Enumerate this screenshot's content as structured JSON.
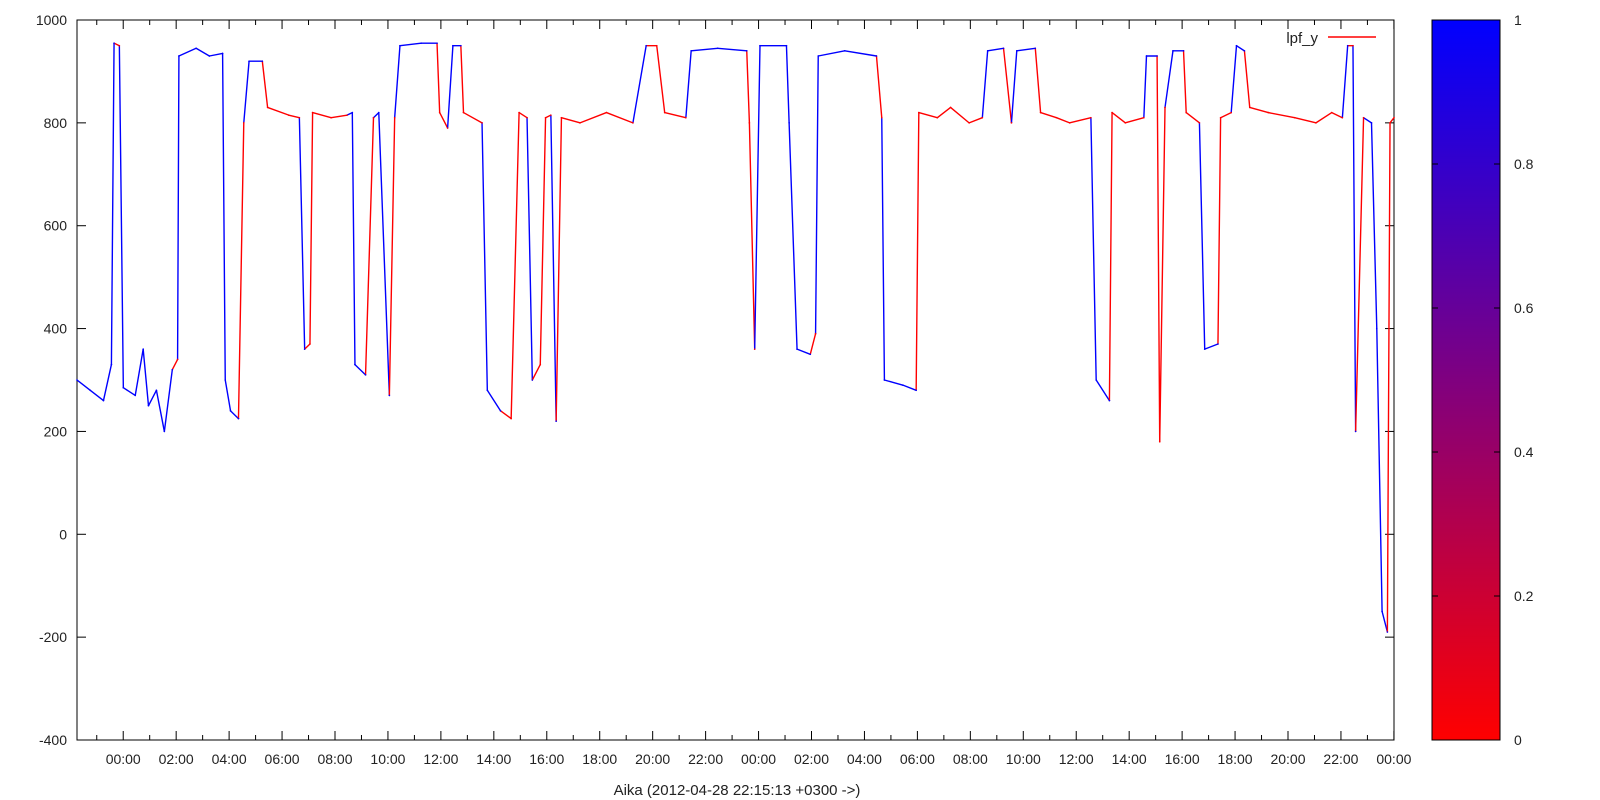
{
  "chart_data": {
    "type": "line",
    "title": "",
    "xlabel": "Aika (2012-04-28 22:15:13 +0300 ->)",
    "ylabel": "",
    "ylim": [
      -400,
      1000
    ],
    "yticks": [
      "-400",
      "-200",
      "0",
      "200",
      "400",
      "600",
      "800",
      "1000"
    ],
    "x_unit": "hours since 2012-04-28 22:15:13",
    "xlim": [
      0,
      49.75
    ],
    "xticks": [
      {
        "label": "00:00",
        "at": 1.746
      },
      {
        "label": "02:00",
        "at": 3.746
      },
      {
        "label": "04:00",
        "at": 5.746
      },
      {
        "label": "06:00",
        "at": 7.746
      },
      {
        "label": "08:00",
        "at": 9.746
      },
      {
        "label": "10:00",
        "at": 11.746
      },
      {
        "label": "12:00",
        "at": 13.746
      },
      {
        "label": "14:00",
        "at": 15.746
      },
      {
        "label": "16:00",
        "at": 17.746
      },
      {
        "label": "18:00",
        "at": 19.746
      },
      {
        "label": "20:00",
        "at": 21.746
      },
      {
        "label": "22:00",
        "at": 23.746
      },
      {
        "label": "00:00",
        "at": 25.746
      },
      {
        "label": "02:00",
        "at": 27.746
      },
      {
        "label": "04:00",
        "at": 29.746
      },
      {
        "label": "06:00",
        "at": 31.746
      },
      {
        "label": "08:00",
        "at": 33.746
      },
      {
        "label": "10:00",
        "at": 35.746
      },
      {
        "label": "12:00",
        "at": 37.746
      },
      {
        "label": "14:00",
        "at": 39.746
      },
      {
        "label": "16:00",
        "at": 41.746
      },
      {
        "label": "18:00",
        "at": 43.746
      },
      {
        "label": "20:00",
        "at": 45.746
      },
      {
        "label": "22:00",
        "at": 47.746
      },
      {
        "label": "00:00",
        "at": 49.746
      }
    ],
    "legend": {
      "position": "top-right"
    },
    "series": [
      {
        "name": "lpf_y",
        "color_mode": "palette",
        "points": [
          [
            0,
            300,
            1
          ],
          [
            0.5,
            280,
            1
          ],
          [
            1.0,
            260,
            1
          ],
          [
            1.3,
            330,
            1
          ],
          [
            1.4,
            955,
            1
          ],
          [
            1.6,
            950,
            0
          ],
          [
            1.75,
            285,
            1
          ],
          [
            2.2,
            270,
            1
          ],
          [
            2.5,
            360,
            1
          ],
          [
            2.7,
            250,
            1
          ],
          [
            3.0,
            280,
            1
          ],
          [
            3.3,
            200,
            1
          ],
          [
            3.6,
            320,
            1
          ],
          [
            3.8,
            340,
            0
          ],
          [
            3.85,
            930,
            1
          ],
          [
            4.5,
            945,
            1
          ],
          [
            5.0,
            930,
            1
          ],
          [
            5.5,
            935,
            1
          ],
          [
            5.6,
            300,
            1
          ],
          [
            5.8,
            240,
            1
          ],
          [
            6.1,
            225,
            1
          ],
          [
            6.3,
            800,
            0
          ],
          [
            6.5,
            920,
            1
          ],
          [
            7.0,
            920,
            1
          ],
          [
            7.2,
            830,
            0
          ],
          [
            8.0,
            815,
            0
          ],
          [
            8.4,
            810,
            0
          ],
          [
            8.6,
            360,
            1
          ],
          [
            8.8,
            370,
            0
          ],
          [
            8.9,
            820,
            0
          ],
          [
            9.6,
            810,
            0
          ],
          [
            10.2,
            815,
            0
          ],
          [
            10.4,
            820,
            1
          ],
          [
            10.5,
            330,
            1
          ],
          [
            10.9,
            310,
            1
          ],
          [
            11.2,
            810,
            0
          ],
          [
            11.4,
            820,
            1
          ],
          [
            11.8,
            270,
            1
          ],
          [
            12.0,
            810,
            0
          ],
          [
            12.2,
            950,
            1
          ],
          [
            13.0,
            955,
            1
          ],
          [
            13.6,
            955,
            1
          ],
          [
            13.7,
            820,
            0
          ],
          [
            14.0,
            790,
            0
          ],
          [
            14.2,
            950,
            1
          ],
          [
            14.5,
            950,
            1
          ],
          [
            14.6,
            820,
            0
          ],
          [
            15.3,
            800,
            0
          ],
          [
            15.5,
            280,
            1
          ],
          [
            16.0,
            240,
            1
          ],
          [
            16.4,
            225,
            0
          ],
          [
            16.7,
            820,
            0
          ],
          [
            17.0,
            810,
            0
          ],
          [
            17.2,
            300,
            1
          ],
          [
            17.5,
            330,
            0
          ],
          [
            17.7,
            810,
            0
          ],
          [
            17.9,
            815,
            0
          ],
          [
            18.1,
            220,
            1
          ],
          [
            18.3,
            810,
            0
          ],
          [
            19.0,
            800,
            0
          ],
          [
            20.0,
            820,
            0
          ],
          [
            21.0,
            800,
            0
          ],
          [
            21.5,
            950,
            1
          ],
          [
            21.9,
            950,
            0
          ],
          [
            22.2,
            820,
            0
          ],
          [
            23.0,
            810,
            0
          ],
          [
            23.2,
            940,
            1
          ],
          [
            24.2,
            945,
            1
          ],
          [
            25.3,
            940,
            1
          ],
          [
            25.4,
            800,
            0
          ],
          [
            25.6,
            360,
            0
          ],
          [
            25.8,
            950,
            1
          ],
          [
            26.8,
            950,
            1
          ],
          [
            26.9,
            800,
            1
          ],
          [
            27.2,
            360,
            1
          ],
          [
            27.7,
            350,
            1
          ],
          [
            27.9,
            390,
            0
          ],
          [
            28.0,
            930,
            1
          ],
          [
            29.0,
            940,
            1
          ],
          [
            30.2,
            930,
            1
          ],
          [
            30.4,
            810,
            0
          ],
          [
            30.5,
            300,
            1
          ],
          [
            31.2,
            290,
            1
          ],
          [
            31.7,
            280,
            1
          ],
          [
            31.8,
            820,
            0
          ],
          [
            32.5,
            810,
            0
          ],
          [
            33.0,
            830,
            0
          ],
          [
            33.7,
            800,
            0
          ],
          [
            34.2,
            810,
            0
          ],
          [
            34.4,
            940,
            1
          ],
          [
            35.0,
            945,
            1
          ],
          [
            35.3,
            800,
            0
          ],
          [
            35.5,
            940,
            1
          ],
          [
            36.2,
            945,
            1
          ],
          [
            36.4,
            820,
            0
          ],
          [
            37.0,
            810,
            0
          ],
          [
            37.5,
            800,
            0
          ],
          [
            38.3,
            810,
            0
          ],
          [
            38.5,
            300,
            1
          ],
          [
            39.0,
            260,
            1
          ],
          [
            39.1,
            820,
            0
          ],
          [
            39.6,
            800,
            0
          ],
          [
            40.3,
            810,
            0
          ],
          [
            40.4,
            930,
            1
          ],
          [
            40.8,
            930,
            1
          ],
          [
            40.9,
            180,
            0
          ],
          [
            41.1,
            830,
            0
          ],
          [
            41.4,
            940,
            1
          ],
          [
            41.8,
            940,
            1
          ],
          [
            41.9,
            820,
            0
          ],
          [
            42.4,
            800,
            0
          ],
          [
            42.6,
            360,
            1
          ],
          [
            43.1,
            370,
            1
          ],
          [
            43.2,
            810,
            0
          ],
          [
            43.6,
            820,
            0
          ],
          [
            43.8,
            950,
            1
          ],
          [
            44.1,
            940,
            1
          ],
          [
            44.3,
            830,
            0
          ],
          [
            45.0,
            820,
            0
          ],
          [
            46.0,
            810,
            0
          ],
          [
            46.8,
            800,
            0
          ],
          [
            47.4,
            820,
            0
          ],
          [
            47.8,
            810,
            0
          ],
          [
            48.0,
            950,
            1
          ],
          [
            48.2,
            950,
            0
          ],
          [
            48.3,
            200,
            1
          ],
          [
            48.6,
            810,
            0
          ],
          [
            48.9,
            800,
            1
          ],
          [
            49.1,
            400,
            1
          ],
          [
            49.3,
            -150,
            1
          ],
          [
            49.5,
            -190,
            1
          ],
          [
            49.6,
            800,
            0
          ],
          [
            49.75,
            810,
            0
          ]
        ]
      }
    ],
    "colorbar": {
      "ticks": [
        "0",
        "0.2",
        "0.4",
        "0.6",
        "0.8",
        "1"
      ],
      "low_color": "#ff0000",
      "high_color": "#0000ff",
      "range": [
        0,
        1
      ]
    },
    "grid": false
  }
}
